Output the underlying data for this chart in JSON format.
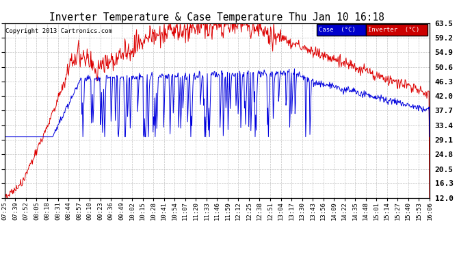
{
  "title": "Inverter Temperature & Case Temperature Thu Jan 10 16:18",
  "copyright": "Copyright 2013 Cartronics.com",
  "ylabel_right_ticks": [
    12.0,
    16.3,
    20.5,
    24.8,
    29.1,
    33.4,
    37.7,
    42.0,
    46.3,
    50.6,
    54.9,
    59.2,
    63.5
  ],
  "ylim": [
    12.0,
    63.5
  ],
  "background_color": "#ffffff",
  "grid_color": "#aaaaaa",
  "case_color": "#0000dd",
  "inverter_color": "#dd0000",
  "legend_case_bg": "#0000cc",
  "legend_inverter_bg": "#cc0000",
  "x_tick_labels": [
    "07:25",
    "07:39",
    "07:52",
    "08:05",
    "08:18",
    "08:31",
    "08:44",
    "08:57",
    "09:10",
    "09:23",
    "09:36",
    "09:49",
    "10:02",
    "10:15",
    "10:28",
    "10:41",
    "10:54",
    "11:07",
    "11:20",
    "11:33",
    "11:46",
    "11:59",
    "12:12",
    "12:25",
    "12:38",
    "12:51",
    "13:04",
    "13:17",
    "13:30",
    "13:43",
    "13:56",
    "14:09",
    "14:22",
    "14:35",
    "14:48",
    "15:01",
    "15:14",
    "15:27",
    "15:40",
    "15:53",
    "16:06"
  ],
  "total_minutes": 533,
  "n_points": 800
}
